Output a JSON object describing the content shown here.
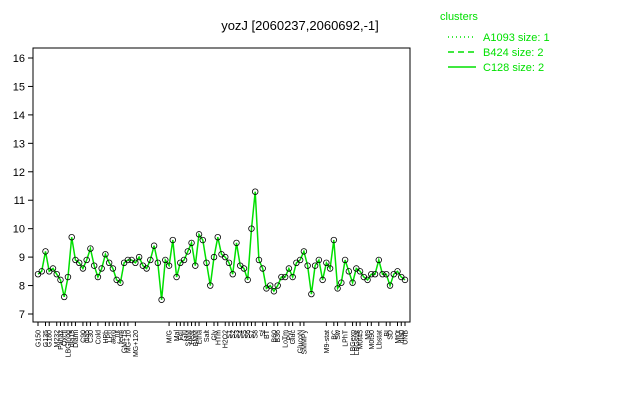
{
  "chart_data": {
    "type": "line",
    "title": "yozJ [2060237,2060692,-1]",
    "categories": [
      "G150",
      null,
      "G135",
      "G180",
      null,
      "M232",
      "Panaz",
      "Oxctl",
      "LBGlnog",
      "dia15",
      "Diami",
      null,
      "C90",
      "dia5",
      "C30",
      null,
      "Cold",
      null,
      "HPh",
      "LPh",
      "aero",
      "nit",
      "ferm",
      "GM+15",
      "MG+10",
      null,
      "MG+120",
      null,
      null,
      null,
      null,
      null,
      null,
      null,
      null,
      "M/G",
      null,
      "Mal",
      "Fru",
      "Glu",
      "SMM",
      "Heat",
      "BMM",
      "Etha",
      null,
      "Salt",
      null,
      "Gly",
      "HTm",
      null,
      "H2O2",
      "S1",
      "S2",
      "S3",
      "S4",
      "S5",
      "S6",
      "S7",
      "S8",
      null,
      "Sf",
      "BT",
      null,
      "B60",
      "B36",
      null,
      "LoTm",
      "Pyr",
      "Gluc",
      null,
      "GlucoN",
      "SMMPy",
      null,
      null,
      null,
      null,
      null,
      "M9-stat",
      null,
      "BC",
      "Sw",
      null,
      "LPhT",
      null,
      "LBGexp",
      "LBGstat",
      "M0t45",
      null,
      "M9",
      "M0t90",
      null,
      "Lbstat",
      null,
      "BI",
      "SD",
      null,
      "Mt0t",
      "dia0",
      "UNB"
    ],
    "series": [
      {
        "name": "C128 size: 2",
        "color": "#00e000",
        "values": [
          8.4,
          8.5,
          9.2,
          8.5,
          8.6,
          8.4,
          8.2,
          7.6,
          8.3,
          9.7,
          8.9,
          8.8,
          8.6,
          8.9,
          9.3,
          8.7,
          8.3,
          8.6,
          9.1,
          8.8,
          8.6,
          8.2,
          8.1,
          8.8,
          8.9,
          8.9,
          8.8,
          9.0,
          8.7,
          8.6,
          8.9,
          9.4,
          8.8,
          7.5,
          8.9,
          8.7,
          9.6,
          8.3,
          8.8,
          8.9,
          9.2,
          9.5,
          8.7,
          9.8,
          9.6,
          8.8,
          8.0,
          9.0,
          9.7,
          9.1,
          9.0,
          8.8,
          8.4,
          9.5,
          8.7,
          8.6,
          8.2,
          10.0,
          11.3,
          8.9,
          8.6,
          7.9,
          8.0,
          7.8,
          8.0,
          8.3,
          8.3,
          8.6,
          8.3,
          8.8,
          8.9,
          9.2,
          8.7,
          7.7,
          8.7,
          8.9,
          8.2,
          8.8,
          8.6,
          9.6,
          7.9,
          8.1,
          8.9,
          8.5,
          8.1,
          8.6,
          8.5,
          8.3,
          8.2,
          8.4,
          8.4,
          8.9,
          8.4,
          8.4,
          8.0,
          8.4,
          8.5,
          8.3,
          8.2
        ]
      }
    ],
    "ylim": [
      7,
      16
    ],
    "yticks": [
      7,
      8,
      9,
      10,
      11,
      12,
      13,
      14,
      15,
      16
    ],
    "legend": {
      "title": "clusters",
      "position": "top-right",
      "entries": [
        {
          "label": "A1093 size: 1",
          "dash": "1,3"
        },
        {
          "label": "B424 size: 2",
          "dash": "6,4"
        },
        {
          "label": "C128 size: 2",
          "dash": "none"
        }
      ]
    }
  }
}
